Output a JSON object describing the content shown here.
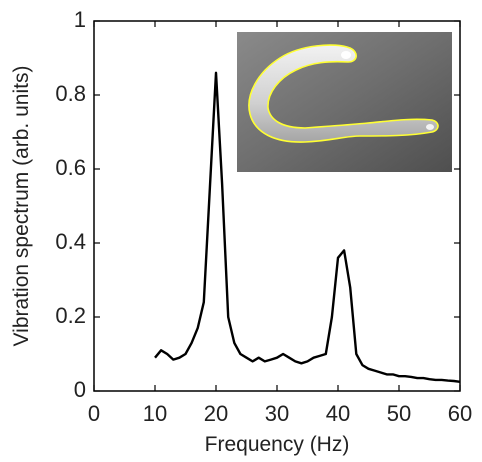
{
  "chart_data": {
    "type": "line",
    "xlabel": "Frequency (Hz)",
    "ylabel": "Vibration spectrum (arb. units)",
    "xlim": [
      0,
      60
    ],
    "ylim": [
      0,
      1
    ],
    "xticks": [
      "0",
      "10",
      "20",
      "30",
      "40",
      "50",
      "60"
    ],
    "yticks": [
      "0",
      "0.2",
      "0.4",
      "0.6",
      "0.8",
      "1"
    ],
    "grid": false,
    "series": [
      {
        "color": "#000000",
        "x": [
          10,
          11,
          12,
          13,
          14,
          15,
          16,
          17,
          18,
          19,
          20,
          21,
          22,
          23,
          24,
          25,
          26,
          27,
          28,
          29,
          30,
          31,
          32,
          33,
          34,
          35,
          36,
          37,
          38,
          39,
          40,
          41,
          42,
          43,
          44,
          45,
          46,
          47,
          48,
          49,
          50,
          51,
          52,
          53,
          54,
          55,
          56,
          57,
          58,
          59,
          60
        ],
        "y": [
          0.09,
          0.11,
          0.1,
          0.085,
          0.09,
          0.1,
          0.13,
          0.17,
          0.24,
          0.55,
          0.86,
          0.56,
          0.2,
          0.13,
          0.1,
          0.09,
          0.08,
          0.09,
          0.08,
          0.085,
          0.09,
          0.1,
          0.09,
          0.08,
          0.075,
          0.08,
          0.09,
          0.095,
          0.1,
          0.2,
          0.36,
          0.38,
          0.28,
          0.1,
          0.07,
          0.06,
          0.055,
          0.05,
          0.045,
          0.045,
          0.04,
          0.04,
          0.038,
          0.035,
          0.035,
          0.032,
          0.03,
          0.03,
          0.028,
          0.027,
          0.025
        ]
      }
    ]
  },
  "inset": {
    "background": "#6f6f6f",
    "body_color": "#d9d9d9",
    "outline_color": "#ffff33"
  }
}
